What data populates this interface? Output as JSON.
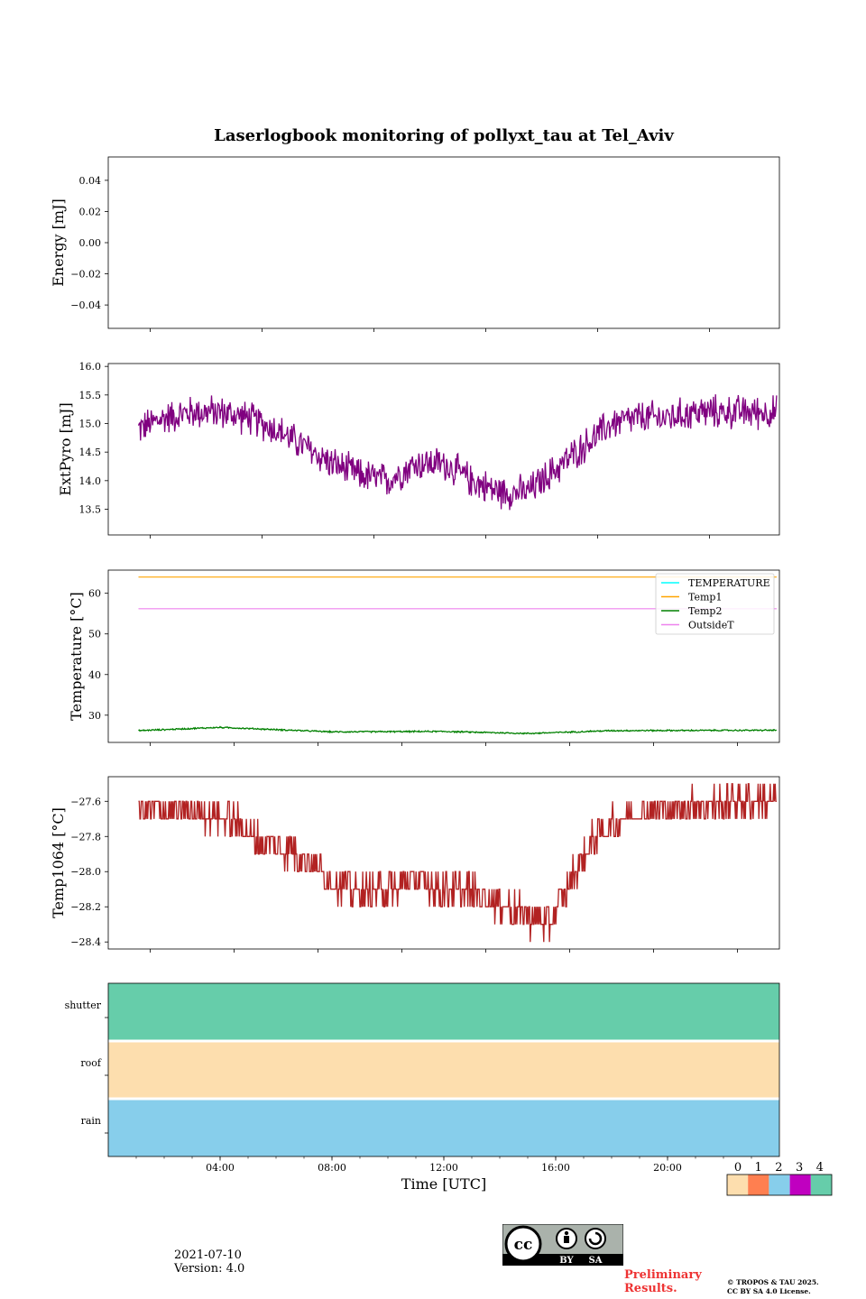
{
  "page_title": "Laserlogbook monitoring of pollyxt_tau at Tel_Aviv",
  "footer": {
    "date": "2021-07-10",
    "version": "Version: 4.0",
    "preliminary": "Preliminary",
    "results": "Results.",
    "copyright_line1": "© TROPOS & TAU 2025.",
    "copyright_line2": "CC BY SA 4.0 License.",
    "badge_by": "BY",
    "badge_sa": "SA"
  },
  "colors": {
    "extpyro": "#800080",
    "temperature": "#00ffff",
    "temp1": "#ffa500",
    "temp2": "#008000",
    "outsidet": "#ee82ee",
    "temp1064": "#b22222",
    "status_0": "#fddeae",
    "status_1": "#ff7f50",
    "status_2": "#87ceeb",
    "status_3": "#c000c0",
    "status_4": "#66cdaa"
  },
  "chart_data": [
    {
      "type": "line",
      "name": "energy",
      "ylabel": "Energy [mJ]",
      "ylim": [
        -0.055,
        0.055
      ],
      "yticks": [
        0.04,
        0.02,
        0.0,
        -0.02,
        -0.04
      ],
      "ytick_labels": [
        "0.04",
        "0.02",
        "0.00",
        "−0.02",
        "−0.04"
      ],
      "xlim": [
        0,
        24
      ],
      "series": []
    },
    {
      "type": "line",
      "name": "extpyro",
      "ylabel": "ExtPyro [mJ]",
      "ylim": [
        13.05,
        16.05
      ],
      "yticks": [
        16.0,
        15.5,
        15.0,
        14.5,
        14.0,
        13.5
      ],
      "ytick_labels": [
        "16.0",
        "15.5",
        "15.0",
        "14.5",
        "14.0",
        "13.5"
      ],
      "xlim": [
        0,
        24
      ],
      "series": [
        {
          "x": [
            1.08,
            2,
            3,
            4,
            5,
            6,
            7,
            8,
            9,
            10,
            11,
            12,
            13,
            14,
            15,
            16,
            17,
            18,
            19,
            20,
            21,
            22,
            23,
            23.9
          ],
          "y": [
            14.9,
            15.1,
            15.2,
            15.2,
            15.1,
            14.9,
            14.6,
            14.3,
            14.1,
            14.0,
            14.3,
            14.3,
            14.0,
            13.8,
            13.8,
            14.2,
            14.6,
            15.0,
            15.1,
            15.1,
            15.2,
            15.2,
            15.2,
            15.2
          ],
          "noise": 0.25
        }
      ]
    },
    {
      "type": "line",
      "name": "temperatures",
      "ylabel": "Temperature [°C]",
      "ylim": [
        23.3,
        65.7
      ],
      "yticks": [
        60,
        50,
        40,
        30
      ],
      "ytick_labels": [
        "60",
        "50",
        "40",
        "30"
      ],
      "xlim": [
        0,
        24
      ],
      "legend": [
        "TEMPERATURE",
        "Temp1",
        "Temp2",
        "OutsideT"
      ],
      "legend_position": "upper right",
      "series": [
        {
          "name": "TEMPERATURE",
          "x": [],
          "y": []
        },
        {
          "name": "Temp1",
          "x": [
            1.08,
            23.9
          ],
          "y": [
            64.0,
            64.0
          ]
        },
        {
          "name": "Temp2",
          "x": [
            1.08,
            4,
            8,
            12,
            15,
            18,
            23.9
          ],
          "y": [
            26.2,
            27.0,
            25.9,
            26.0,
            25.5,
            26.2,
            26.3
          ],
          "noise": 0.15
        },
        {
          "name": "OutsideT",
          "x": [
            1.08,
            23.9
          ],
          "y": [
            56.2,
            56.2
          ]
        }
      ]
    },
    {
      "type": "line",
      "name": "temp1064",
      "ylabel": "Temp1064 [°C]",
      "ylim": [
        -28.44,
        -27.46
      ],
      "yticks": [
        -27.6,
        -27.8,
        -28.0,
        -28.2,
        -28.4
      ],
      "ytick_labels": [
        "−27.6",
        "−27.8",
        "−28.0",
        "−28.2",
        "−28.4"
      ],
      "xlim": [
        0,
        24
      ],
      "series": [
        {
          "x": [
            1.08,
            2,
            3,
            4,
            4.8,
            5.5,
            6.5,
            7.2,
            8,
            9,
            10,
            11,
            12,
            13,
            14,
            15,
            15.8,
            16.5,
            17.2,
            18,
            19,
            20,
            21,
            22,
            23,
            23.9
          ],
          "y": [
            -27.65,
            -27.66,
            -27.66,
            -27.68,
            -27.75,
            -27.85,
            -27.88,
            -27.95,
            -28.05,
            -28.12,
            -28.1,
            -28.05,
            -28.1,
            -28.12,
            -28.18,
            -28.26,
            -28.3,
            -28.05,
            -27.85,
            -27.72,
            -27.66,
            -27.64,
            -27.62,
            -27.62,
            -27.6,
            -27.6
          ],
          "step": 0.1
        }
      ]
    },
    {
      "type": "heatmap",
      "name": "status",
      "rows": [
        "shutter",
        "roof",
        "rain"
      ],
      "row_status": [
        4,
        0,
        2
      ],
      "xlabel": "Time [UTC]",
      "xlim": [
        0,
        24
      ],
      "xticks": [
        4,
        8,
        12,
        16,
        20
      ],
      "xtick_labels": [
        "04:00",
        "08:00",
        "12:00",
        "16:00",
        "20:00"
      ],
      "colorbar_labels": [
        "0",
        "1",
        "2",
        "3",
        "4"
      ]
    }
  ]
}
